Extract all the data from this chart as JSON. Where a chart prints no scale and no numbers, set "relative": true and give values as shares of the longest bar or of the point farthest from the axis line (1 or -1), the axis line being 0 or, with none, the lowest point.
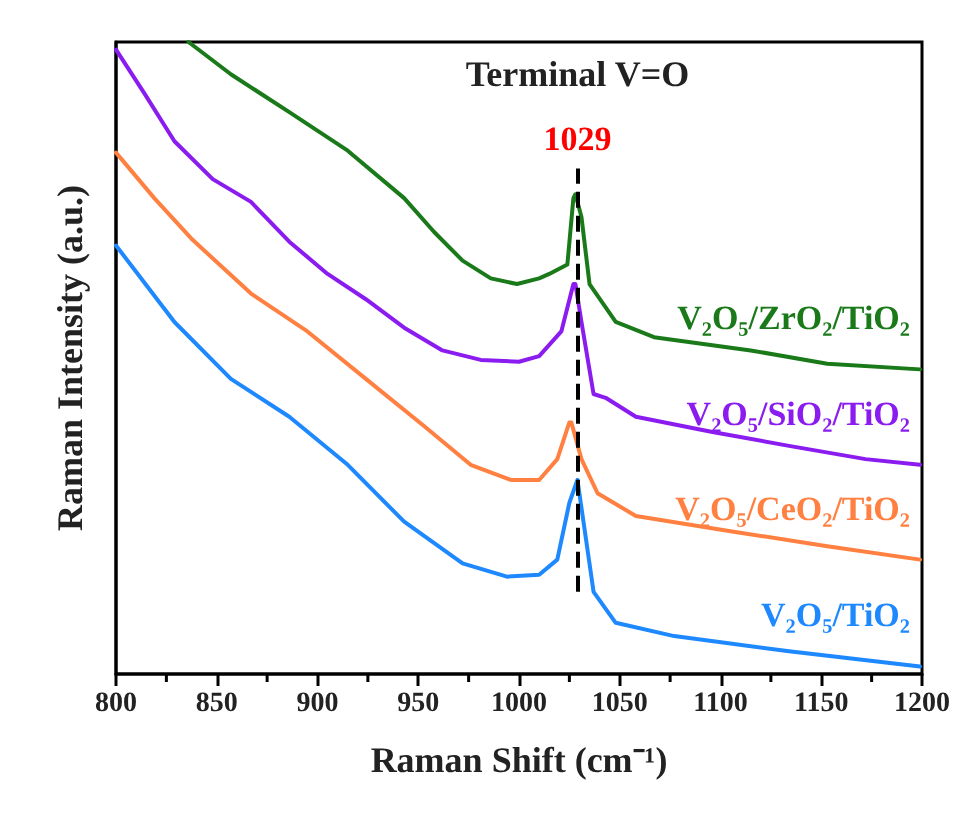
{
  "chart_data": {
    "type": "line",
    "relative": true,
    "xlabel": "Raman Shift (cm⁻¹)",
    "ylabel": "Raman Intensity (a.u.)",
    "xlim": [
      800,
      1200
    ],
    "xticks": [
      800,
      850,
      900,
      950,
      1000,
      1050,
      1100,
      1150,
      1200
    ],
    "legend": false,
    "grid": false,
    "marker": "none",
    "line_style": "solid",
    "annotations": [
      "Terminal V=O"
    ],
    "ref_lines": [
      {
        "axis": "x",
        "value": 1029,
        "label": "1029",
        "color": "#000000",
        "line_style": "dashed"
      }
    ],
    "series": [
      {
        "name": "V₂O₅/ZrO₂/TiO₂",
        "color": "#1a7a1a",
        "x": [
          836,
          857,
          886,
          915,
          943,
          958,
          972,
          986,
          999,
          1010,
          1015,
          1024,
          1027,
          1028,
          1031,
          1035,
          1048,
          1067,
          1115,
          1153,
          1199
        ],
        "values": [
          1.0,
          0.949,
          0.889,
          0.828,
          0.753,
          0.699,
          0.654,
          0.626,
          0.617,
          0.626,
          0.633,
          0.648,
          0.753,
          0.759,
          0.723,
          0.617,
          0.557,
          0.533,
          0.512,
          0.491,
          0.482
        ]
      },
      {
        "name": "V₂O₅/SiO₂/TiO₂",
        "color": "#8b1cf0",
        "x": [
          800,
          814,
          829,
          848,
          867,
          886,
          905,
          924,
          943,
          962,
          981,
          1000,
          1010,
          1021,
          1027,
          1028,
          1031,
          1037,
          1043,
          1058,
          1096,
          1134,
          1172,
          1199
        ],
        "values": [
          0.988,
          0.919,
          0.843,
          0.783,
          0.747,
          0.684,
          0.633,
          0.593,
          0.548,
          0.512,
          0.497,
          0.494,
          0.503,
          0.542,
          0.617,
          0.617,
          0.557,
          0.443,
          0.437,
          0.407,
          0.383,
          0.361,
          0.34,
          0.331
        ]
      },
      {
        "name": "V₂O₅/CeO₂/TiO₂",
        "color": "#ff8040",
        "x": [
          800,
          819,
          838,
          867,
          895,
          924,
          953,
          976,
          996,
          1010,
          1019,
          1025,
          1026,
          1031,
          1039,
          1058,
          1105,
          1153,
          1199
        ],
        "values": [
          0.825,
          0.753,
          0.687,
          0.602,
          0.542,
          0.467,
          0.392,
          0.331,
          0.307,
          0.307,
          0.34,
          0.398,
          0.398,
          0.34,
          0.286,
          0.25,
          0.226,
          0.202,
          0.181
        ]
      },
      {
        "name": "V₂O₅/TiO₂",
        "color": "#1e88ff",
        "x": [
          800,
          829,
          857,
          886,
          915,
          943,
          972,
          994,
          1010,
          1019,
          1025,
          1029,
          1032,
          1037,
          1048,
          1077,
          1134,
          1199
        ],
        "values": [
          0.678,
          0.557,
          0.467,
          0.407,
          0.331,
          0.241,
          0.175,
          0.154,
          0.157,
          0.181,
          0.271,
          0.307,
          0.241,
          0.13,
          0.081,
          0.06,
          0.036,
          0.012
        ]
      }
    ]
  }
}
